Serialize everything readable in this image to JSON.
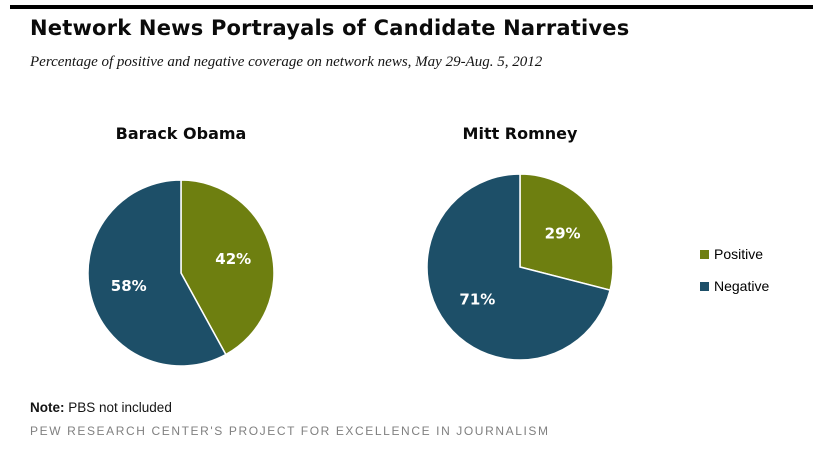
{
  "header": {
    "title": "Network News Portrayals of Candidate Narratives",
    "subtitle": "Percentage of positive and negative coverage on network news, May 29-Aug. 5, 2012"
  },
  "chart_data": [
    {
      "type": "pie",
      "title": "Barack Obama",
      "labels": [
        "Positive",
        "Negative"
      ],
      "values": [
        42,
        58
      ],
      "value_unit": "%",
      "colors": [
        "#6e7f10",
        "#1d4f68"
      ],
      "start_angle": "top",
      "direction": "clockwise"
    },
    {
      "type": "pie",
      "title": "Mitt Romney",
      "labels": [
        "Positive",
        "Negative"
      ],
      "values": [
        29,
        71
      ],
      "value_unit": "%",
      "colors": [
        "#6e7f10",
        "#1d4f68"
      ],
      "start_angle": "top",
      "direction": "clockwise"
    }
  ],
  "legend": {
    "position": "right",
    "items": [
      {
        "label": "Positive",
        "color": "#6e7f10"
      },
      {
        "label": "Negative",
        "color": "#1d4f68"
      }
    ]
  },
  "footer": {
    "note_label": "Note:",
    "note_text": " PBS not included",
    "source": "PEW RESEARCH CENTER'S PROJECT FOR EXCELLENCE IN JOURNALISM"
  }
}
